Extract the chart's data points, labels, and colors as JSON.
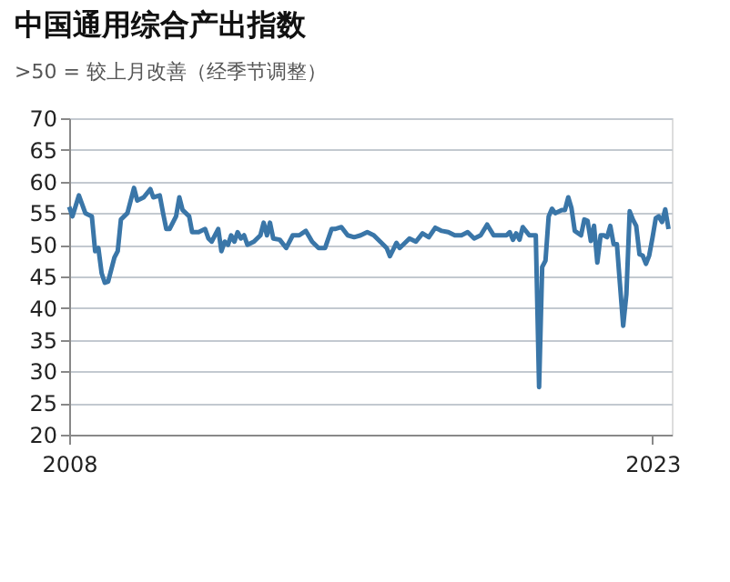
{
  "chart_data": {
    "type": "line",
    "title": "中国通用综合产出指数",
    "subtitle": ">50 = 较上月改善（经季节调整）",
    "x": [
      "2008-01",
      "2008-02",
      "2008-04",
      "2008-06",
      "2008-08",
      "2008-09",
      "2008-10",
      "2008-11",
      "2008-12",
      "2009-01",
      "2009-03",
      "2009-04",
      "2009-05",
      "2009-07",
      "2009-09",
      "2009-10",
      "2009-12",
      "2010-02",
      "2010-03",
      "2010-05",
      "2010-06",
      "2010-07",
      "2010-08",
      "2010-10",
      "2010-11",
      "2010-12",
      "2011-02",
      "2011-03",
      "2011-05",
      "2011-07",
      "2011-08",
      "2011-09",
      "2011-11",
      "2011-12",
      "2012-01",
      "2012-02",
      "2012-03",
      "2012-04",
      "2012-05",
      "2012-06",
      "2012-07",
      "2012-08",
      "2012-10",
      "2012-12",
      "2013-01",
      "2013-02",
      "2013-03",
      "2013-04",
      "2013-06",
      "2013-08",
      "2013-10",
      "2013-12",
      "2014-02",
      "2014-04",
      "2014-06",
      "2014-08",
      "2014-10",
      "2014-11",
      "2015-01",
      "2015-03",
      "2015-05",
      "2015-07",
      "2015-09",
      "2015-11",
      "2016-01",
      "2016-03",
      "2016-04",
      "2016-06",
      "2016-07",
      "2016-09",
      "2016-10",
      "2016-12",
      "2017-02",
      "2017-04",
      "2017-06",
      "2017-08",
      "2017-10",
      "2017-12",
      "2018-02",
      "2018-04",
      "2018-06",
      "2018-08",
      "2018-10",
      "2018-12",
      "2019-02",
      "2019-04",
      "2019-05",
      "2019-06",
      "2019-07",
      "2019-08",
      "2019-09",
      "2019-11",
      "2020-01",
      "2020-02",
      "2020-03",
      "2020-04",
      "2020-05",
      "2020-06",
      "2020-07",
      "2020-09",
      "2020-10",
      "2020-11",
      "2020-12",
      "2021-01",
      "2021-03",
      "2021-04",
      "2021-05",
      "2021-06",
      "2021-07",
      "2021-08",
      "2021-09",
      "2021-10",
      "2021-11",
      "2021-12",
      "2022-01",
      "2022-02",
      "2022-03",
      "2022-04",
      "2022-05",
      "2022-06",
      "2022-07",
      "2022-08",
      "2022-09",
      "2022-10",
      "2022-11",
      "2022-12",
      "2023-01",
      "2023-02",
      "2023-03",
      "2023-04",
      "2023-05",
      "2023-06"
    ],
    "series": [
      {
        "color": "#3a76a8",
        "values": [
          56,
          54.5,
          57.8,
          55,
          54.5,
          49,
          49.5,
          45.5,
          44,
          44.2,
          48,
          49,
          54,
          55,
          59,
          57,
          57.5,
          58.8,
          57.5,
          57.8,
          55,
          52.5,
          52.5,
          54.5,
          57.5,
          55.5,
          54.5,
          52,
          52,
          52.5,
          51,
          50.5,
          52.5,
          49,
          50.5,
          50,
          51.5,
          50.5,
          52,
          51,
          51.5,
          50,
          50.5,
          51.5,
          53.5,
          51.5,
          53.5,
          51,
          50.8,
          49.5,
          51.5,
          51.5,
          52.2,
          50.5,
          49.5,
          49.5,
          52.5,
          52.5,
          52.8,
          51.5,
          51.2,
          51.5,
          52,
          51.5,
          50.5,
          49.5,
          48.2,
          50.3,
          49.5,
          50.5,
          51,
          50.5,
          51.8,
          51.2,
          52.7,
          52.2,
          52,
          51.5,
          51.5,
          52,
          51,
          51.5,
          53.2,
          51.5,
          51.5,
          51.5,
          52,
          50.8,
          51.8,
          50.8,
          52.8,
          51.5,
          51.5,
          27.5,
          46.5,
          47.5,
          54.5,
          55.7,
          55,
          55.5,
          55.5,
          57.5,
          55.8,
          52.2,
          51.5,
          54,
          53.8,
          50.6,
          53,
          47.2,
          51.5,
          51.5,
          51.2,
          53,
          50.1,
          50.1,
          43.9,
          37.2,
          42.2,
          55.3,
          54,
          53,
          48.5,
          48.3,
          47,
          48.3,
          51.1,
          54.2,
          54.5,
          53.6,
          55.6,
          52.5
        ]
      }
    ],
    "xlim": [
      "2008-01",
      "2023-07"
    ],
    "xticks": [
      "2008",
      "2023"
    ],
    "ylim": [
      20,
      70
    ],
    "yticks": [
      20,
      25,
      30,
      35,
      40,
      45,
      50,
      55,
      60,
      65,
      70
    ],
    "grid": "y"
  }
}
